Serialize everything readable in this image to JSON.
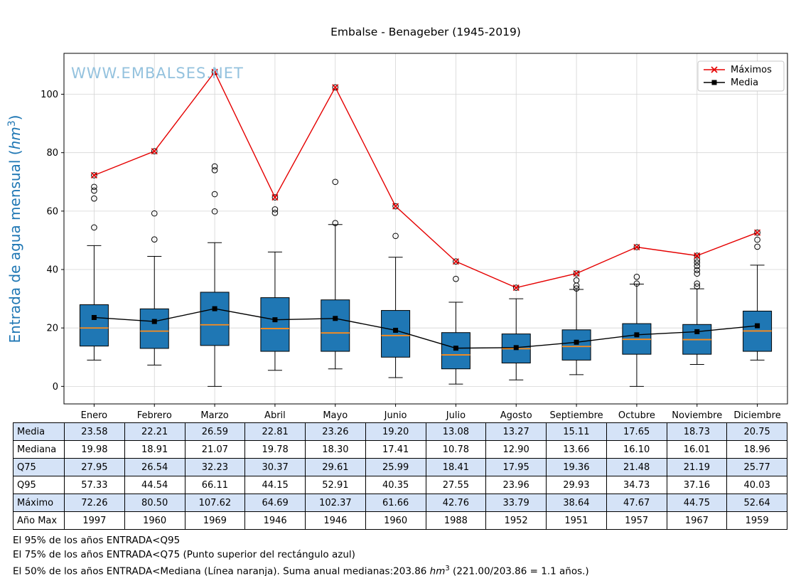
{
  "title": "Embalse - Benageber (1945-2019)",
  "watermark": "WWW.EMBALSES.NET",
  "ylabel": {
    "prefix": "Entrada de agua mensual (",
    "unit": "hm",
    "sup": "3",
    "suffix": ")"
  },
  "legend": {
    "maximos": "Máximos",
    "media": "Media"
  },
  "chart_data": {
    "type": "boxplot",
    "categories": [
      "Enero",
      "Febrero",
      "Marzo",
      "Abril",
      "Mayo",
      "Junio",
      "Julio",
      "Agosto",
      "Septiembre",
      "Octubre",
      "Noviembre",
      "Diciembre"
    ],
    "ylim": [
      -6,
      114
    ],
    "yticks": [
      0,
      20,
      40,
      60,
      80,
      100
    ],
    "grid": true,
    "legend_position": "upper right",
    "colors": {
      "box_fill": "#1f77b4",
      "median_line": "#ff8c1a",
      "maximos_line": "#e50000",
      "media_line": "#000000",
      "grid": "#d5d5d5",
      "ylabel": "#1f77b4",
      "watermark": "#94c2de"
    },
    "series": [
      {
        "name": "Máximos",
        "type": "line",
        "color": "#e50000",
        "marker": "x",
        "values": [
          72.26,
          80.5,
          107.62,
          64.69,
          102.37,
          61.66,
          42.76,
          33.79,
          38.64,
          47.67,
          44.75,
          52.64
        ]
      },
      {
        "name": "Media",
        "type": "line",
        "color": "#000000",
        "marker": "square",
        "values": [
          23.58,
          22.21,
          26.59,
          22.81,
          23.26,
          19.2,
          13.08,
          13.27,
          15.11,
          17.65,
          18.73,
          20.75
        ]
      }
    ],
    "boxes": {
      "median": [
        19.98,
        18.91,
        21.07,
        19.78,
        18.3,
        17.41,
        10.78,
        12.9,
        13.66,
        16.1,
        16.01,
        18.96
      ],
      "q25": [
        13.8,
        13.0,
        14.0,
        12.0,
        12.0,
        10.0,
        6.0,
        8.0,
        9.0,
        11.0,
        11.0,
        12.0
      ],
      "q75": [
        27.95,
        26.54,
        32.23,
        30.37,
        29.61,
        25.99,
        18.41,
        17.95,
        19.36,
        21.48,
        21.19,
        25.77
      ],
      "whisker_low": [
        9.0,
        7.3,
        0.0,
        5.5,
        6.0,
        3.0,
        0.8,
        2.2,
        4.0,
        0.0,
        7.5,
        9.0
      ],
      "whisker_high": [
        48.2,
        44.5,
        49.2,
        46.0,
        55.4,
        44.2,
        28.8,
        30.0,
        33.2,
        35.0,
        33.4,
        41.5
      ],
      "outliers": [
        [
          54.4,
          64.3,
          67.0,
          68.3
        ],
        [
          50.3,
          59.2
        ],
        [
          59.9,
          65.8,
          74.0,
          75.3
        ],
        [
          59.4,
          60.6
        ],
        [
          55.9,
          70.0
        ],
        [
          51.5
        ],
        [
          36.8
        ],
        [],
        [
          33.5,
          34.5,
          36.3
        ],
        [
          35.2,
          37.5
        ],
        [
          34.2,
          35.2,
          38.6,
          39.8,
          41.2,
          42.4,
          43.4
        ],
        [
          47.8,
          50.2
        ]
      ]
    }
  },
  "table": {
    "rows": [
      {
        "label": "Media",
        "highlight": true,
        "values": [
          "23.58",
          "22.21",
          "26.59",
          "22.81",
          "23.26",
          "19.20",
          "13.08",
          "13.27",
          "15.11",
          "17.65",
          "18.73",
          "20.75"
        ]
      },
      {
        "label": "Mediana",
        "highlight": false,
        "values": [
          "19.98",
          "18.91",
          "21.07",
          "19.78",
          "18.30",
          "17.41",
          "10.78",
          "12.90",
          "13.66",
          "16.10",
          "16.01",
          "18.96"
        ]
      },
      {
        "label": "Q75",
        "highlight": true,
        "values": [
          "27.95",
          "26.54",
          "32.23",
          "30.37",
          "29.61",
          "25.99",
          "18.41",
          "17.95",
          "19.36",
          "21.48",
          "21.19",
          "25.77"
        ]
      },
      {
        "label": "Q95",
        "highlight": false,
        "values": [
          "57.33",
          "44.54",
          "66.11",
          "44.15",
          "52.91",
          "40.35",
          "27.55",
          "23.96",
          "29.93",
          "34.73",
          "37.16",
          "40.03"
        ]
      },
      {
        "label": "Máximo",
        "highlight": true,
        "values": [
          "72.26",
          "80.50",
          "107.62",
          "64.69",
          "102.37",
          "61.66",
          "42.76",
          "33.79",
          "38.64",
          "47.67",
          "44.75",
          "52.64"
        ]
      },
      {
        "label": "Año Max",
        "highlight": false,
        "values": [
          "1997",
          "1960",
          "1969",
          "1946",
          "1946",
          "1960",
          "1988",
          "1952",
          "1951",
          "1957",
          "1967",
          "1959"
        ]
      }
    ]
  },
  "footnotes": {
    "line1": "El 95% de los años ENTRADA<Q95",
    "line2": "El 75% de los años ENTRADA<Q75 (Punto superior del rectángulo azul)",
    "line3_prefix": "El 50% de los años ENTRADA<Mediana (Línea naranja). Suma anual medianas:203.86 ",
    "line3_unit": "hm",
    "line3_sup": "3",
    "line3_suffix": " (221.00/203.86 = 1.1 años.)"
  }
}
